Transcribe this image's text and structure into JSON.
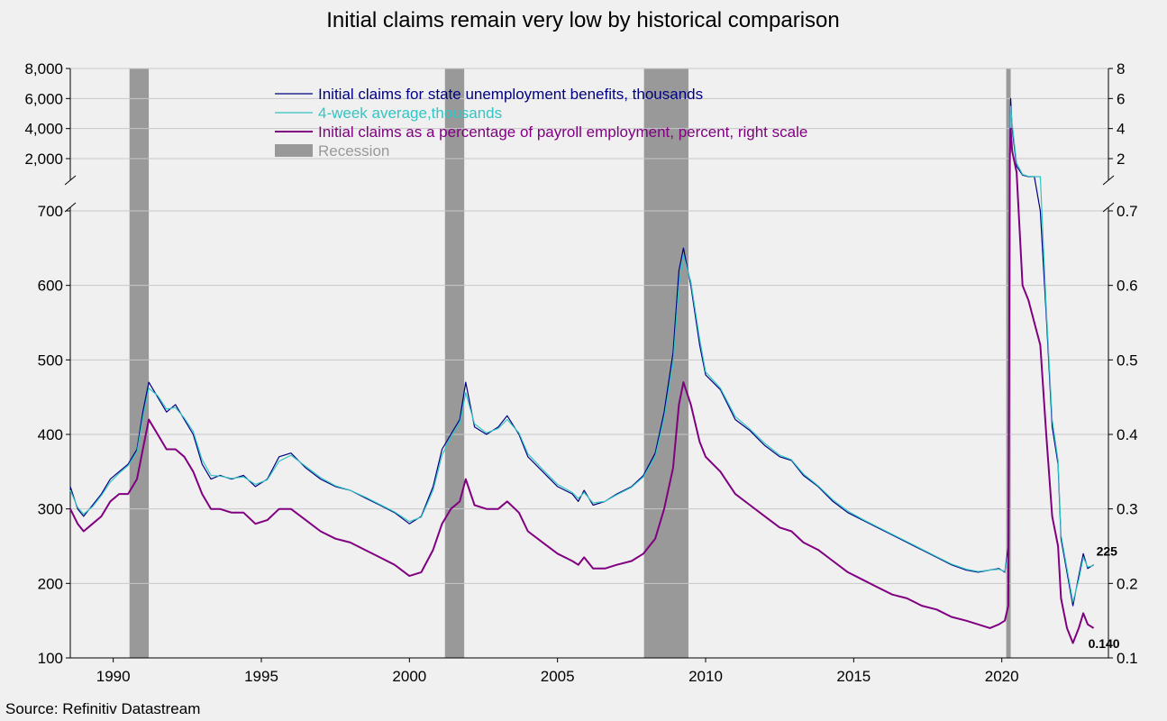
{
  "chart_data": {
    "type": "line",
    "title": "Initial claims remain very low by historical comparison",
    "source": "Source: Refinitiv Datastream",
    "x_ticks": [
      "1990",
      "1995",
      "2000",
      "2005",
      "2010",
      "2015",
      "2020"
    ],
    "x_range": [
      1988.55,
      2023.6
    ],
    "y_left": {
      "lower_panel": {
        "range": [
          100,
          700
        ],
        "ticks": [
          "100",
          "200",
          "300",
          "400",
          "500",
          "600",
          "700"
        ]
      },
      "upper_panel": {
        "range": [
          800,
          8000
        ],
        "ticks": [
          "2,000",
          "4,000",
          "6,000",
          "8,000"
        ]
      }
    },
    "y_right": {
      "lower_panel": {
        "range": [
          0.1,
          0.7
        ],
        "ticks": [
          "0.1",
          "0.2",
          "0.3",
          "0.4",
          "0.5",
          "0.6",
          "0.7"
        ]
      },
      "upper_panel": {
        "range": [
          0.8,
          8
        ],
        "ticks": [
          "2",
          "4",
          "6",
          "8"
        ]
      }
    },
    "grid": true,
    "legend_position": "top-center",
    "legend": [
      {
        "name": "Initial claims for state unemployment benefits,  thousands",
        "color": "#000080",
        "kind": "line"
      },
      {
        "name": "4-week average,thousands",
        "color": "#33c4c4",
        "kind": "line"
      },
      {
        "name": "Initial claims as a percentage of payroll employment, percent, right scale",
        "color": "#800080",
        "kind": "line"
      },
      {
        "name": "Recession",
        "color": "#999999",
        "kind": "box"
      }
    ],
    "recessions": [
      [
        1990.55,
        1991.2
      ],
      [
        2001.2,
        2001.85
      ],
      [
        2007.92,
        2009.42
      ],
      [
        2020.15,
        2020.3
      ]
    ],
    "end_labels": {
      "claims": "225",
      "percent": "0.140"
    },
    "series": [
      {
        "name": "Initial claims for state unemployment benefits,  thousands",
        "axis": "left",
        "x": [
          1988.55,
          1988.8,
          1989.0,
          1989.3,
          1989.6,
          1989.9,
          1990.2,
          1990.5,
          1990.8,
          1991.0,
          1991.2,
          1991.5,
          1991.8,
          1992.1,
          1992.4,
          1992.7,
          1993.0,
          1993.3,
          1993.6,
          1994.0,
          1994.4,
          1994.8,
          1995.2,
          1995.6,
          1996.0,
          1996.5,
          1997.0,
          1997.5,
          1998.0,
          1998.5,
          1999.0,
          1999.5,
          2000.0,
          2000.4,
          2000.8,
          2001.1,
          2001.4,
          2001.7,
          2001.9,
          2002.2,
          2002.6,
          2003.0,
          2003.3,
          2003.7,
          2004.0,
          2004.5,
          2005.0,
          2005.5,
          2005.7,
          2005.9,
          2006.2,
          2006.6,
          2007.0,
          2007.5,
          2007.9,
          2008.3,
          2008.6,
          2008.9,
          2009.1,
          2009.25,
          2009.5,
          2009.8,
          2010.0,
          2010.5,
          2011.0,
          2011.5,
          2012.0,
          2012.5,
          2012.9,
          2013.3,
          2013.8,
          2014.3,
          2014.8,
          2015.3,
          2015.8,
          2016.3,
          2016.8,
          2017.3,
          2017.8,
          2018.3,
          2018.8,
          2019.2,
          2019.6,
          2019.9,
          2020.1,
          2020.22,
          2020.27,
          2020.3,
          2020.35,
          2020.5,
          2020.7,
          2020.9,
          2021.1,
          2021.3,
          2021.5,
          2021.7,
          2021.9,
          2022.0,
          2022.2,
          2022.4,
          2022.6,
          2022.75,
          2022.9,
          2023.1
        ],
        "y": [
          330,
          300,
          290,
          305,
          320,
          340,
          350,
          360,
          380,
          430,
          470,
          450,
          430,
          440,
          420,
          400,
          360,
          340,
          345,
          340,
          345,
          330,
          340,
          370,
          375,
          355,
          340,
          330,
          325,
          315,
          305,
          295,
          280,
          290,
          330,
          380,
          400,
          420,
          470,
          410,
          400,
          410,
          425,
          400,
          370,
          350,
          330,
          320,
          310,
          325,
          305,
          310,
          320,
          330,
          345,
          375,
          430,
          510,
          620,
          650,
          600,
          520,
          480,
          460,
          420,
          405,
          385,
          370,
          365,
          345,
          330,
          310,
          295,
          285,
          275,
          265,
          255,
          245,
          235,
          225,
          218,
          215,
          218,
          220,
          215,
          250,
          3000,
          6000,
          4000,
          1500,
          900,
          800,
          750,
          700,
          560,
          410,
          360,
          260,
          215,
          170,
          210,
          240,
          220,
          225
        ]
      },
      {
        "name": "4-week average,thousands",
        "axis": "left",
        "x": [
          1988.55,
          1988.8,
          1989.0,
          1989.3,
          1989.6,
          1989.9,
          1990.2,
          1990.5,
          1990.8,
          1991.0,
          1991.2,
          1991.5,
          1991.8,
          1992.1,
          1992.4,
          1992.7,
          1993.0,
          1993.3,
          1993.6,
          1994.0,
          1994.4,
          1994.8,
          1995.2,
          1995.6,
          1996.0,
          1996.5,
          1997.0,
          1997.5,
          1998.0,
          1998.5,
          1999.0,
          1999.5,
          2000.0,
          2000.4,
          2000.8,
          2001.1,
          2001.4,
          2001.7,
          2001.9,
          2002.2,
          2002.6,
          2003.0,
          2003.3,
          2003.7,
          2004.0,
          2004.5,
          2005.0,
          2005.5,
          2005.7,
          2005.9,
          2006.2,
          2006.6,
          2007.0,
          2007.5,
          2007.9,
          2008.3,
          2008.6,
          2008.9,
          2009.1,
          2009.25,
          2009.5,
          2009.8,
          2010.0,
          2010.5,
          2011.0,
          2011.5,
          2012.0,
          2012.5,
          2012.9,
          2013.3,
          2013.8,
          2014.3,
          2014.8,
          2015.3,
          2015.8,
          2016.3,
          2016.8,
          2017.3,
          2017.8,
          2018.3,
          2018.8,
          2019.2,
          2019.6,
          2019.9,
          2020.1,
          2020.22,
          2020.27,
          2020.3,
          2020.35,
          2020.5,
          2020.7,
          2020.9,
          2021.1,
          2021.3,
          2021.5,
          2021.7,
          2021.9,
          2022.0,
          2022.2,
          2022.4,
          2022.6,
          2022.75,
          2022.9,
          2023.1
        ],
        "y": [
          325,
          302,
          293,
          303,
          318,
          336,
          348,
          358,
          376,
          422,
          462,
          452,
          434,
          436,
          422,
          404,
          366,
          345,
          344,
          341,
          343,
          333,
          339,
          364,
          372,
          357,
          342,
          331,
          325,
          316,
          306,
          296,
          283,
          289,
          325,
          372,
          396,
          414,
          456,
          414,
          402,
          408,
          420,
          402,
          374,
          353,
          333,
          322,
          314,
          322,
          308,
          310,
          319,
          329,
          343,
          370,
          422,
          495,
          600,
          640,
          605,
          528,
          484,
          462,
          424,
          407,
          388,
          372,
          366,
          347,
          331,
          312,
          297,
          286,
          276,
          266,
          256,
          246,
          236,
          226,
          219,
          216,
          218,
          219,
          216,
          240,
          2500,
          5500,
          4300,
          1700,
          950,
          820,
          760,
          705,
          570,
          420,
          365,
          265,
          220,
          175,
          205,
          235,
          222,
          224
        ]
      },
      {
        "name": "Initial claims as a percentage of payroll employment, percent, right scale",
        "axis": "right",
        "x": [
          1988.55,
          1988.8,
          1989.0,
          1989.3,
          1989.6,
          1989.9,
          1990.2,
          1990.5,
          1990.8,
          1991.0,
          1991.2,
          1991.5,
          1991.8,
          1992.1,
          1992.4,
          1992.7,
          1993.0,
          1993.3,
          1993.6,
          1994.0,
          1994.4,
          1994.8,
          1995.2,
          1995.6,
          1996.0,
          1996.5,
          1997.0,
          1997.5,
          1998.0,
          1998.5,
          1999.0,
          1999.5,
          2000.0,
          2000.4,
          2000.8,
          2001.1,
          2001.4,
          2001.7,
          2001.9,
          2002.2,
          2002.6,
          2003.0,
          2003.3,
          2003.7,
          2004.0,
          2004.5,
          2005.0,
          2005.5,
          2005.7,
          2005.9,
          2006.2,
          2006.6,
          2007.0,
          2007.5,
          2007.9,
          2008.3,
          2008.6,
          2008.9,
          2009.1,
          2009.25,
          2009.5,
          2009.8,
          2010.0,
          2010.5,
          2011.0,
          2011.5,
          2012.0,
          2012.5,
          2012.9,
          2013.3,
          2013.8,
          2014.3,
          2014.8,
          2015.3,
          2015.8,
          2016.3,
          2016.8,
          2017.3,
          2017.8,
          2018.3,
          2018.8,
          2019.2,
          2019.6,
          2019.9,
          2020.1,
          2020.22,
          2020.27,
          2020.3,
          2020.35,
          2020.5,
          2020.7,
          2020.9,
          2021.1,
          2021.3,
          2021.5,
          2021.7,
          2021.9,
          2022.0,
          2022.2,
          2022.4,
          2022.6,
          2022.75,
          2022.9,
          2023.1
        ],
        "y": [
          0.3,
          0.28,
          0.27,
          0.28,
          0.29,
          0.31,
          0.32,
          0.32,
          0.34,
          0.38,
          0.42,
          0.4,
          0.38,
          0.38,
          0.37,
          0.35,
          0.32,
          0.3,
          0.3,
          0.295,
          0.295,
          0.28,
          0.285,
          0.3,
          0.3,
          0.285,
          0.27,
          0.26,
          0.255,
          0.245,
          0.235,
          0.225,
          0.21,
          0.215,
          0.245,
          0.28,
          0.3,
          0.31,
          0.34,
          0.305,
          0.3,
          0.3,
          0.31,
          0.295,
          0.27,
          0.255,
          0.24,
          0.23,
          0.225,
          0.235,
          0.22,
          0.22,
          0.225,
          0.23,
          0.24,
          0.26,
          0.3,
          0.355,
          0.44,
          0.47,
          0.44,
          0.39,
          0.37,
          0.35,
          0.32,
          0.305,
          0.29,
          0.275,
          0.27,
          0.255,
          0.245,
          0.23,
          0.215,
          0.205,
          0.195,
          0.185,
          0.18,
          0.17,
          0.165,
          0.155,
          0.15,
          0.145,
          0.14,
          0.145,
          0.15,
          0.17,
          2.0,
          4.0,
          2.5,
          1.1,
          0.6,
          0.58,
          0.55,
          0.52,
          0.4,
          0.29,
          0.25,
          0.18,
          0.14,
          0.12,
          0.14,
          0.16,
          0.145,
          0.14
        ]
      }
    ]
  }
}
